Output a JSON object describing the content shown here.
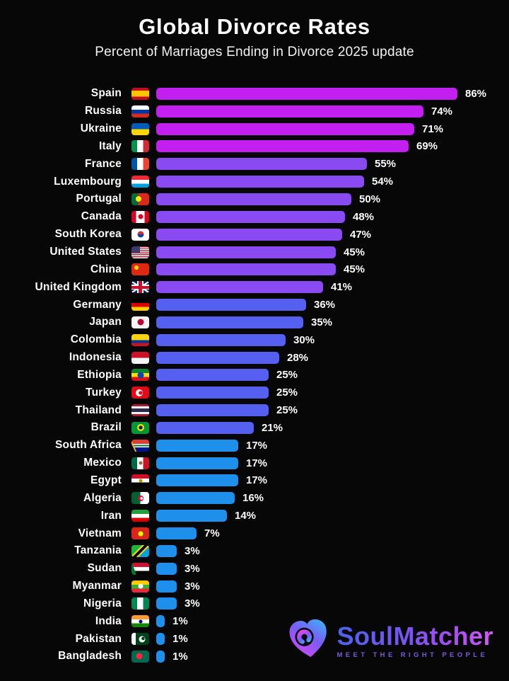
{
  "title": "Global Divorce Rates",
  "subtitle": "Percent of Marriages Ending in Divorce 2025 update",
  "colors": {
    "background": "#070707",
    "text": "#ffffff",
    "tiers": {
      "magenta": "#c31ff0",
      "purple": "#8a4af2",
      "indigo": "#5660f0",
      "blue": "#1e90ec"
    },
    "logo_gradient": [
      "#4a63ea",
      "#7b53f2",
      "#cf5cf2"
    ],
    "logo_heart_blue": "#3fa9f5",
    "logo_heart_pink": "#e046ef",
    "tagline": "#7a5ae0"
  },
  "chart_data": {
    "type": "bar",
    "orientation": "horizontal",
    "title": "Global Divorce Rates",
    "subtitle": "Percent of Marriages Ending in Divorce 2025 update",
    "unit": "%",
    "xlim": [
      0,
      86
    ],
    "grid": false,
    "legend": false,
    "categories": [
      "Spain",
      "Russia",
      "Ukraine",
      "Italy",
      "France",
      "Luxembourg",
      "Portugal",
      "Canada",
      "South Korea",
      "United States",
      "China",
      "United Kingdom",
      "Germany",
      "Japan",
      "Colombia",
      "Indonesia",
      "Ethiopia",
      "Turkey",
      "Thailand",
      "Brazil",
      "South Africa",
      "Mexico",
      "Egypt",
      "Algeria",
      "Iran",
      "Vietnam",
      "Tanzania",
      "Sudan",
      "Myanmar",
      "Nigeria",
      "India",
      "Pakistan",
      "Bangladesh"
    ],
    "values": [
      86,
      74,
      71,
      69,
      55,
      54,
      50,
      48,
      47,
      45,
      45,
      41,
      36,
      35,
      30,
      28,
      25,
      25,
      25,
      21,
      17,
      17,
      17,
      16,
      14,
      7,
      3,
      3,
      3,
      3,
      1,
      1,
      1
    ],
    "value_labels": [
      "86%",
      "74%",
      "71%",
      "69%",
      "55%",
      "54%",
      "50%",
      "48%",
      "47%",
      "45%",
      "45%",
      "41%",
      "36%",
      "35%",
      "30%",
      "28%",
      "25%",
      "25%",
      "25%",
      "21%",
      "17%",
      "17%",
      "17%",
      "16%",
      "14%",
      "7%",
      "3%",
      "3%",
      "3%",
      "3%",
      "1%",
      "1%",
      "1%"
    ],
    "bar_color_tiers": "magenta: Spain-Italy, purple: France-United Kingdom, indigo: Germany-Brazil, blue: South Africa-Bangladesh"
  },
  "rows": [
    {
      "country": "Spain",
      "value": 86,
      "label": "86%",
      "tier": "magenta",
      "flag": "flag-spain",
      "flag_css": {
        "bg": "linear-gradient(180deg,#c60b1e 0 25%,#ffc400 25% 75%,#c60b1e 75%)"
      }
    },
    {
      "country": "Russia",
      "value": 74,
      "label": "74%",
      "tier": "magenta",
      "flag": "flag-russia",
      "flag_css": {
        "bg": "linear-gradient(180deg,#ffffff 0 34%,#0039a6 34% 67%,#d52b1e 67%)"
      }
    },
    {
      "country": "Ukraine",
      "value": 71,
      "label": "71%",
      "tier": "magenta",
      "flag": "flag-ukraine",
      "flag_css": {
        "bg": "linear-gradient(180deg,#005bbb 0 50%,#ffd500 50%)"
      }
    },
    {
      "country": "Italy",
      "value": 69,
      "label": "69%",
      "tier": "magenta",
      "flag": "flag-italy",
      "flag_css": {
        "bg": "linear-gradient(90deg,#009246 0 33%,#ffffff 33% 67%,#ce2b37 67%)"
      }
    },
    {
      "country": "France",
      "value": 55,
      "label": "55%",
      "tier": "purple",
      "flag": "flag-france",
      "flag_css": {
        "bg": "linear-gradient(90deg,#0055a4 0 33%,#ffffff 33% 67%,#ef4135 67%)"
      }
    },
    {
      "country": "Luxembourg",
      "value": 54,
      "label": "54%",
      "tier": "purple",
      "flag": "flag-luxembourg",
      "flag_css": {
        "bg": "linear-gradient(180deg,#ed2939 0 34%,#ffffff 34% 67%,#00a1de 67%)"
      }
    },
    {
      "country": "Portugal",
      "value": 50,
      "label": "50%",
      "tier": "purple",
      "flag": "flag-portugal",
      "flag_css": {
        "bg": "linear-gradient(90deg,#046a38 0 38%,#da291c 38%)",
        "dot": {
          "bg": "#ffe800",
          "x": 38,
          "y": 50,
          "w": 8,
          "h": 8
        }
      }
    },
    {
      "country": "Canada",
      "value": 48,
      "label": "48%",
      "tier": "purple",
      "flag": "flag-canada",
      "flag_css": {
        "bg": "linear-gradient(90deg,#d80621 0 26%,#ffffff 26% 74%,#d80621 74%)",
        "dot": {
          "bg": "#d80621",
          "x": 50,
          "y": 50,
          "w": 7,
          "h": 7
        }
      }
    },
    {
      "country": "South Korea",
      "value": 47,
      "label": "47%",
      "tier": "purple",
      "flag": "flag-south-korea",
      "flag_css": {
        "bg": "#ffffff",
        "dot": {
          "bg": "linear-gradient(180deg,#cd2e3a 0 50%,#0047a0 50%)",
          "x": 50,
          "y": 50,
          "w": 9,
          "h": 9
        }
      }
    },
    {
      "country": "United States",
      "value": 45,
      "label": "45%",
      "tier": "purple",
      "flag": "flag-united-states",
      "flag_css": {
        "bg": "linear-gradient(#3c3b6e,#3c3b6e) left top/12px 9px no-repeat, repeating-linear-gradient(180deg,#b22234 0 1.4px,#ffffff 1.4px 2.8px)"
      }
    },
    {
      "country": "China",
      "value": 45,
      "label": "45%",
      "tier": "purple",
      "flag": "flag-china",
      "flag_css": {
        "bg": "#de2910",
        "dot": {
          "bg": "#ffde00",
          "x": 26,
          "y": 34,
          "w": 6,
          "h": 6
        }
      }
    },
    {
      "country": "United Kingdom",
      "value": 41,
      "label": "41%",
      "tier": "purple",
      "flag": "flag-united-kingdom",
      "flag_css": {
        "bg": "linear-gradient(#c8102e,#c8102e) center/100% 4px no-repeat, linear-gradient(#c8102e,#c8102e) center/5px 100% no-repeat, linear-gradient(#ffffff,#ffffff) center/100% 7px no-repeat, linear-gradient(#ffffff,#ffffff) center/9px 100% no-repeat, linear-gradient(32deg,rgba(0,0,0,0) 46%,#ffffff 46% 54%,rgba(0,0,0,0) 54%), linear-gradient(148deg,rgba(0,0,0,0) 46%,#ffffff 46% 54%,rgba(0,0,0,0) 54%), #012169"
      }
    },
    {
      "country": "Germany",
      "value": 36,
      "label": "36%",
      "tier": "indigo",
      "flag": "flag-germany",
      "flag_css": {
        "bg": "linear-gradient(180deg,#000000 0 34%,#dd0000 34% 67%,#ffce00 67%)"
      }
    },
    {
      "country": "Japan",
      "value": 35,
      "label": "35%",
      "tier": "indigo",
      "flag": "flag-japan",
      "flag_css": {
        "bg": "#f5f5f5",
        "dot": {
          "bg": "#bc002d",
          "x": 50,
          "y": 50,
          "w": 9,
          "h": 9
        }
      }
    },
    {
      "country": "Colombia",
      "value": 30,
      "label": "30%",
      "tier": "indigo",
      "flag": "flag-colombia",
      "flag_css": {
        "bg": "linear-gradient(180deg,#fcd116 0 50%,#003893 50% 75%,#ce1126 75%)"
      }
    },
    {
      "country": "Indonesia",
      "value": 28,
      "label": "28%",
      "tier": "indigo",
      "flag": "flag-indonesia",
      "flag_css": {
        "bg": "linear-gradient(180deg,#ce1126 0 50%,#f5f5f5 50%)"
      }
    },
    {
      "country": "Ethiopia",
      "value": 25,
      "label": "25%",
      "tier": "indigo",
      "flag": "flag-ethiopia",
      "flag_css": {
        "bg": "linear-gradient(180deg,#078930 0 34%,#fcdd09 34% 67%,#da121a 67%)",
        "dot": {
          "bg": "#0f47af",
          "x": 50,
          "y": 50,
          "w": 9,
          "h": 9
        }
      }
    },
    {
      "country": "Turkey",
      "value": 25,
      "label": "25%",
      "tier": "indigo",
      "flag": "flag-turkey",
      "flag_css": {
        "bg": "#e30a17",
        "dot": {
          "bg": "radial-gradient(circle at 68% 50%,#e30a17 0 2.6px,#ffffff 2.8px)",
          "x": 45,
          "y": 50,
          "w": 10,
          "h": 10
        }
      }
    },
    {
      "country": "Thailand",
      "value": 25,
      "label": "25%",
      "tier": "indigo",
      "flag": "flag-thailand",
      "flag_css": {
        "bg": "linear-gradient(180deg,#a51931 0 17%,#f4f5f8 17% 34%,#2d2a4a 34% 66%,#f4f5f8 66% 83%,#a51931 83%)"
      }
    },
    {
      "country": "Brazil",
      "value": 21,
      "label": "21%",
      "tier": "indigo",
      "flag": "flag-brazil",
      "flag_css": {
        "bg": "#009739",
        "dot": {
          "bg": "radial-gradient(circle,#012169 0 2.6px,#fedd00 2.8px)",
          "x": 50,
          "y": 50,
          "w": 10,
          "h": 10
        }
      }
    },
    {
      "country": "South Africa",
      "value": 17,
      "label": "17%",
      "tier": "blue",
      "flag": "flag-south-africa",
      "flag_css": {
        "bg": "linear-gradient(64deg,#000000 0 16%,#ffb81c 16% 22%,rgba(0,0,0,0) 22%), linear-gradient(180deg,#e03c31 0 36%,#ffffff 36% 43%,#007749 43% 57%,#ffffff 57% 64%,#001489 64%)"
      }
    },
    {
      "country": "Mexico",
      "value": 17,
      "label": "17%",
      "tier": "blue",
      "flag": "flag-mexico",
      "flag_css": {
        "bg": "linear-gradient(90deg,#006847 0 33%,#ffffff 33% 67%,#ce1126 67%)",
        "dot": {
          "bg": "#8c6a3f",
          "x": 50,
          "y": 50,
          "w": 5,
          "h": 5
        }
      }
    },
    {
      "country": "Egypt",
      "value": 17,
      "label": "17%",
      "tier": "blue",
      "flag": "flag-egypt",
      "flag_css": {
        "bg": "linear-gradient(180deg,#ce1126 0 34%,#ffffff 34% 67%,#000000 67%)",
        "dot": {
          "bg": "#c09300",
          "x": 50,
          "y": 50,
          "w": 5,
          "h": 5
        }
      }
    },
    {
      "country": "Algeria",
      "value": 16,
      "label": "16%",
      "tier": "blue",
      "flag": "flag-algeria",
      "flag_css": {
        "bg": "linear-gradient(90deg,#006233 0 50%,#ffffff 50%)",
        "dot": {
          "bg": "radial-gradient(circle at 66% 50%,rgba(0,0,0,0) 0 1.8px,#d21034 2px)",
          "x": 50,
          "y": 50,
          "w": 8,
          "h": 8
        }
      }
    },
    {
      "country": "Iran",
      "value": 14,
      "label": "14%",
      "tier": "blue",
      "flag": "flag-iran",
      "flag_css": {
        "bg": "linear-gradient(180deg,#239f40 0 34%,#ffffff 34% 67%,#da0000 67%)"
      }
    },
    {
      "country": "Vietnam",
      "value": 7,
      "label": "7%",
      "tier": "blue",
      "flag": "flag-vietnam",
      "flag_css": {
        "bg": "#da251d",
        "dot": {
          "bg": "#ffff00",
          "x": 50,
          "y": 50,
          "w": 7,
          "h": 7
        }
      }
    },
    {
      "country": "Tanzania",
      "value": 3,
      "label": "3%",
      "tier": "blue",
      "flag": "flag-tanzania",
      "flag_css": {
        "bg": "linear-gradient(135deg,#1eb53a 0 36%,#fcd116 36% 43%,#000000 43% 57%,#fcd116 57% 64%,#00a3dd 64%)"
      }
    },
    {
      "country": "Sudan",
      "value": 3,
      "label": "3%",
      "tier": "blue",
      "flag": "flag-sudan",
      "flag_css": {
        "bg": "linear-gradient(70deg,#007229 0 22%,rgba(0,0,0,0) 22%), linear-gradient(180deg,#d21034 0 34%,#ffffff 34% 67%,#000000 67%)"
      }
    },
    {
      "country": "Myanmar",
      "value": 3,
      "label": "3%",
      "tier": "blue",
      "flag": "flag-myanmar",
      "flag_css": {
        "bg": "linear-gradient(180deg,#fecb00 0 34%,#34b233 34% 67%,#ea2839 67%)",
        "dot": {
          "bg": "#ffffff",
          "x": 50,
          "y": 50,
          "w": 7,
          "h": 7
        }
      }
    },
    {
      "country": "Nigeria",
      "value": 3,
      "label": "3%",
      "tier": "blue",
      "flag": "flag-nigeria",
      "flag_css": {
        "bg": "linear-gradient(90deg,#008751 0 33%,#ffffff 33% 67%,#008751 67%)"
      }
    },
    {
      "country": "India",
      "value": 1,
      "label": "1%",
      "tier": "blue",
      "flag": "flag-india",
      "flag_css": {
        "bg": "linear-gradient(180deg,#ff9933 0 34%,#ffffff 34% 67%,#128807 67%)",
        "dot": {
          "bg": "#000088",
          "x": 50,
          "y": 50,
          "w": 5,
          "h": 5
        }
      }
    },
    {
      "country": "Pakistan",
      "value": 1,
      "label": "1%",
      "tier": "blue",
      "flag": "flag-pakistan",
      "flag_css": {
        "bg": "linear-gradient(90deg,#ffffff 0 25%,#01411c 25%)",
        "dot": {
          "bg": "radial-gradient(circle at 66% 38%,#01411c 0 2.2px,#f2f2f2 2.4px)",
          "x": 58,
          "y": 50,
          "w": 9,
          "h": 9
        }
      }
    },
    {
      "country": "Bangladesh",
      "value": 1,
      "label": "1%",
      "tier": "blue",
      "flag": "flag-bangladesh",
      "flag_css": {
        "bg": "#006a4e",
        "dot": {
          "bg": "#f42a41",
          "x": 45,
          "y": 50,
          "w": 9,
          "h": 9
        }
      }
    }
  ],
  "logo": {
    "name": "SoulMatcher",
    "tagline": "MEET THE RIGHT PEOPLE"
  }
}
